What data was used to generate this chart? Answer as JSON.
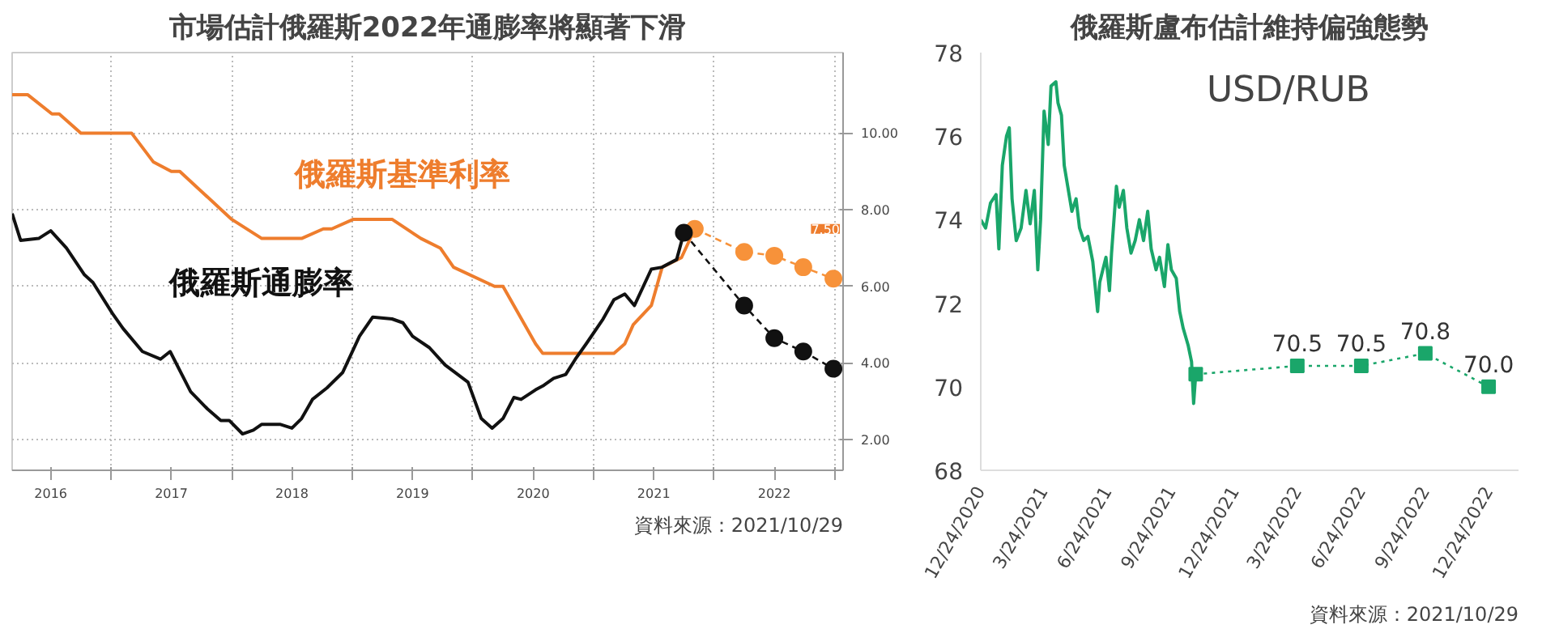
{
  "chart_data": [
    {
      "type": "line",
      "title": "市場估計俄羅斯2022年通膨率將顯著下滑",
      "xlim": [
        2016.18,
        2023.07
      ],
      "ylim": [
        1.2,
        12.1
      ],
      "xticks": [
        {
          "value": 2016.5,
          "label": "2016"
        },
        {
          "value": 2017,
          "label": null
        },
        {
          "value": 2017.5,
          "label": "2017"
        },
        {
          "value": 2018,
          "label": null
        },
        {
          "value": 2018.5,
          "label": "2018"
        },
        {
          "value": 2019,
          "label": null
        },
        {
          "value": 2019.5,
          "label": "2019"
        },
        {
          "value": 2020,
          "label": null
        },
        {
          "value": 2020.5,
          "label": "2020"
        },
        {
          "value": 2021,
          "label": null
        },
        {
          "value": 2021.5,
          "label": "2021"
        },
        {
          "value": 2022,
          "label": null
        },
        {
          "value": 2022.5,
          "label": "2022"
        },
        {
          "value": 2023,
          "label": null
        }
      ],
      "yticks": [
        {
          "value": 2,
          "label": "2.00"
        },
        {
          "value": 4,
          "label": "4.00"
        },
        {
          "value": 6,
          "label": "6.00"
        },
        {
          "value": 8,
          "label": "8.00"
        },
        {
          "value": 10,
          "label": "10.00"
        }
      ],
      "grid": true,
      "legend": false,
      "series": [
        {
          "name": "俄羅斯基準利率",
          "color": "#ee7d2d",
          "line_style": "solid",
          "x": [
            2016.18,
            2016.31,
            2016.51,
            2016.57,
            2016.75,
            2017.17,
            2017.35,
            2017.5,
            2017.57,
            2018.0,
            2018.25,
            2018.58,
            2018.76,
            2018.83,
            2019.01,
            2019.33,
            2019.57,
            2019.73,
            2019.84,
            2020.18,
            2020.25,
            2020.52,
            2020.58,
            2021.17,
            2021.26,
            2021.33,
            2021.48,
            2021.57,
            2021.73,
            2021.84
          ],
          "values": [
            11.0,
            11.0,
            10.5,
            10.5,
            10.0,
            10.0,
            9.25,
            9.0,
            9.0,
            7.75,
            7.25,
            7.25,
            7.5,
            7.5,
            7.75,
            7.75,
            7.25,
            7.0,
            6.5,
            6.0,
            6.0,
            4.5,
            4.25,
            4.25,
            4.5,
            5.0,
            5.5,
            6.5,
            6.75,
            7.5
          ]
        },
        {
          "name": "俄羅斯通膨率",
          "color": "#111111",
          "line_style": "solid",
          "x": [
            2016.18,
            2016.25,
            2016.4,
            2016.5,
            2016.63,
            2016.78,
            2016.85,
            2017.01,
            2017.1,
            2017.26,
            2017.41,
            2017.49,
            2017.66,
            2017.8,
            2017.91,
            2017.98,
            2018.09,
            2018.18,
            2018.25,
            2018.4,
            2018.5,
            2018.58,
            2018.67,
            2018.79,
            2018.92,
            2019.06,
            2019.17,
            2019.33,
            2019.42,
            2019.5,
            2019.64,
            2019.77,
            2019.96,
            2020.07,
            2020.16,
            2020.25,
            2020.34,
            2020.4,
            2020.52,
            2020.58,
            2020.67,
            2020.77,
            2020.85,
            2020.94,
            2021.08,
            2021.17,
            2021.26,
            2021.34,
            2021.48,
            2021.57,
            2021.69,
            2021.75
          ],
          "values": [
            7.9,
            7.2,
            7.25,
            7.45,
            7.0,
            6.3,
            6.1,
            5.3,
            4.9,
            4.3,
            4.1,
            4.3,
            3.25,
            2.8,
            2.5,
            2.5,
            2.15,
            2.25,
            2.4,
            2.4,
            2.3,
            2.55,
            3.05,
            3.35,
            3.75,
            4.7,
            5.2,
            5.15,
            5.05,
            4.7,
            4.4,
            3.95,
            3.5,
            2.55,
            2.3,
            2.55,
            3.1,
            3.05,
            3.3,
            3.4,
            3.6,
            3.7,
            4.1,
            4.5,
            5.15,
            5.65,
            5.8,
            5.5,
            6.45,
            6.5,
            6.7,
            7.4
          ]
        },
        {
          "color": "#f7923a",
          "line_style": "dashed",
          "marker": "circle",
          "x": [
            2021.84,
            2022.25,
            2022.5,
            2022.74,
            2022.99
          ],
          "values": [
            7.5,
            6.9,
            6.8,
            6.5,
            6.2
          ]
        },
        {
          "color": "#111111",
          "line_style": "dashed",
          "marker": "circle",
          "x": [
            2021.75,
            2022.25,
            2022.5,
            2022.74,
            2022.99
          ],
          "values": [
            7.4,
            5.5,
            4.65,
            4.3,
            3.85
          ]
        }
      ],
      "annotations": [
        "7.50",
        "資料來源：2021/10/29"
      ]
    },
    {
      "type": "line",
      "title": "俄羅斯盧布估計維持偏強態勢",
      "xlim": [
        "2020-12-24",
        "2023-02-05"
      ],
      "ylim": [
        68,
        78
      ],
      "xticks": [
        {
          "value": "2020-12-24",
          "label": "12/24/2020"
        },
        {
          "value": "2021-03-24",
          "label": "3/24/2021"
        },
        {
          "value": "2021-06-24",
          "label": "6/24/2021"
        },
        {
          "value": "2021-09-24",
          "label": "9/24/2021"
        },
        {
          "value": "2021-12-24",
          "label": "12/24/2021"
        },
        {
          "value": "2022-03-24",
          "label": "3/24/2022"
        },
        {
          "value": "2022-06-24",
          "label": "6/24/2022"
        },
        {
          "value": "2022-09-24",
          "label": "9/24/2022"
        },
        {
          "value": "2022-12-24",
          "label": "12/24/2022"
        }
      ],
      "yticks": [
        68,
        70,
        72,
        74,
        76,
        78
      ],
      "grid": false,
      "legend": false,
      "series": [
        {
          "color": "#1aa66a",
          "line_style": "solid",
          "x": [
            "2020-12-24",
            "2020-12-31",
            "2021-01-07",
            "2021-01-15",
            "2021-01-19",
            "2021-01-24",
            "2021-01-30",
            "2021-02-03",
            "2021-02-07",
            "2021-02-13",
            "2021-02-20",
            "2021-02-27",
            "2021-03-05",
            "2021-03-11",
            "2021-03-16",
            "2021-03-20",
            "2021-03-25",
            "2021-03-31",
            "2021-04-04",
            "2021-04-11",
            "2021-04-14",
            "2021-04-19",
            "2021-04-23",
            "2021-04-28",
            "2021-05-04",
            "2021-05-10",
            "2021-05-15",
            "2021-05-21",
            "2021-05-27",
            "2021-06-03",
            "2021-06-10",
            "2021-06-13",
            "2021-06-22",
            "2021-06-27",
            "2021-06-30",
            "2021-07-07",
            "2021-07-11",
            "2021-07-17",
            "2021-07-22",
            "2021-07-28",
            "2021-08-03",
            "2021-08-09",
            "2021-08-15",
            "2021-08-21",
            "2021-08-26",
            "2021-09-02",
            "2021-09-07",
            "2021-09-14",
            "2021-09-19",
            "2021-09-24",
            "2021-10-01",
            "2021-10-06",
            "2021-10-11",
            "2021-10-18",
            "2021-10-23",
            "2021-10-26",
            "2021-10-29"
          ],
          "values": [
            74.0,
            73.8,
            74.4,
            74.6,
            73.3,
            75.3,
            76.0,
            76.2,
            74.5,
            73.5,
            73.8,
            74.7,
            73.9,
            74.7,
            72.8,
            74.0,
            76.6,
            75.8,
            77.2,
            77.3,
            76.8,
            76.5,
            75.3,
            74.8,
            74.2,
            74.5,
            73.8,
            73.5,
            73.6,
            73.0,
            71.8,
            72.5,
            73.1,
            72.3,
            73.2,
            74.8,
            74.3,
            74.7,
            73.8,
            73.2,
            73.5,
            74.0,
            73.5,
            74.2,
            73.3,
            72.8,
            73.1,
            72.4,
            73.4,
            72.8,
            72.6,
            71.8,
            71.4,
            71.0,
            70.6,
            69.6,
            70.3
          ]
        },
        {
          "color": "#1aa66a",
          "line_style": "dotted",
          "marker": "square",
          "x": [
            "2021-10-29",
            "2022-03-24",
            "2022-06-24",
            "2022-09-24",
            "2022-12-24"
          ],
          "values": [
            70.3,
            70.5,
            70.5,
            70.8,
            70.0
          ],
          "value_labels": [
            null,
            "70.5",
            "70.5",
            "70.8",
            "70.0"
          ]
        }
      ],
      "annotations": [
        "USD/RUB",
        "資料來源：2021/10/29"
      ]
    }
  ]
}
